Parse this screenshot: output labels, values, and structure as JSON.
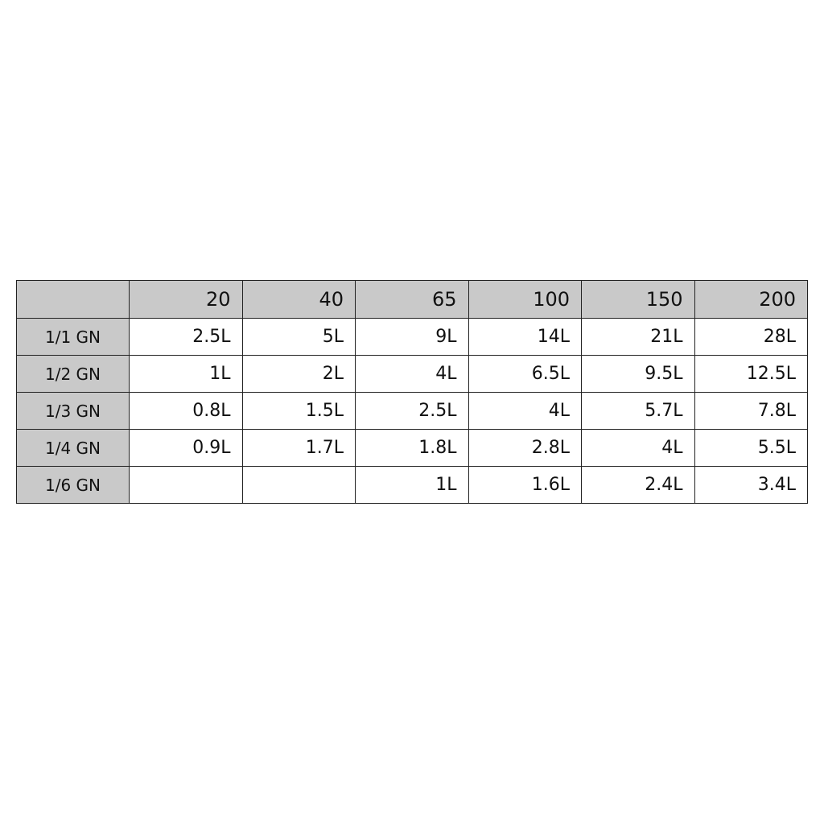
{
  "table": {
    "header": [
      20,
      40,
      65,
      100,
      150,
      200
    ],
    "rows": [
      {
        "label": "1/1 GN",
        "cells": [
          "2.5L",
          "5L",
          "9L",
          "14L",
          "21L",
          "28L"
        ]
      },
      {
        "label": "1/2 GN",
        "cells": [
          "1L",
          "2L",
          "4L",
          "6.5L",
          "9.5L",
          "12.5L"
        ]
      },
      {
        "label": "1/3 GN",
        "cells": [
          "0.8L",
          "1.5L",
          "2.5L",
          "4L",
          "5.7L",
          "7.8L"
        ]
      },
      {
        "label": "1/4 GN",
        "cells": [
          "0.9L",
          "1.7L",
          "1.8L",
          "2.8L",
          "4L",
          "5.5L"
        ]
      },
      {
        "label": "1/6 GN",
        "cells": [
          null,
          null,
          "1L",
          "1.6L",
          "2.4L",
          "3.4L"
        ]
      }
    ]
  }
}
